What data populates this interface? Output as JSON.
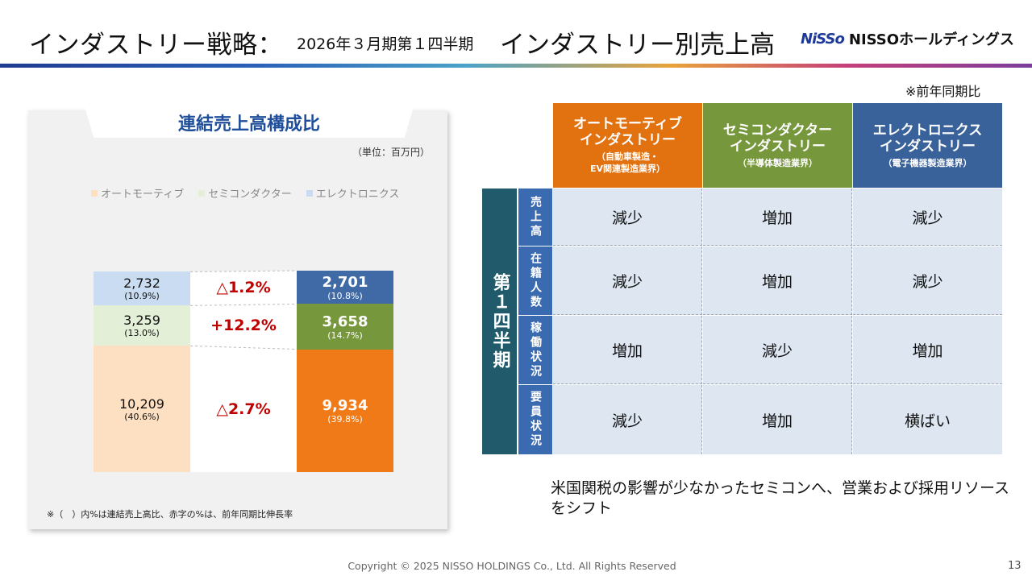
{
  "header": {
    "title_main": "インダストリー戦略：",
    "title_sub": "2026年３月期第１四半期",
    "title_main2": "インダストリー別売上高",
    "logo_mark": "NiSSo",
    "logo_text": "NISSOホールディングス"
  },
  "left_panel": {
    "title": "連結売上高構成比",
    "unit": "（単位：百万円）",
    "legend": [
      "オートモーティブ",
      "セミコンダクター",
      "エレクトロニクス"
    ],
    "note": "※（　）内%は連結売上高比、赤字の%は、前年同期比伸長率"
  },
  "chart_data": {
    "type": "bar",
    "stacked": true,
    "series": [
      {
        "name": "オートモーティブ",
        "values": [
          10209,
          9934
        ],
        "share_labels": [
          "(40.6%)",
          "(39.8%)"
        ],
        "value_labels": [
          "10,209",
          "9,934"
        ]
      },
      {
        "name": "セミコンダクター",
        "values": [
          3259,
          3658
        ],
        "share_labels": [
          "(13.0%)",
          "(14.7%)"
        ],
        "value_labels": [
          "3,259",
          "3,658"
        ]
      },
      {
        "name": "エレクトロニクス",
        "values": [
          2732,
          2701
        ],
        "share_labels": [
          "(10.9%)",
          "(10.8%)"
        ],
        "value_labels": [
          "2,732",
          "2,701"
        ]
      }
    ],
    "changes": [
      "△2.7%",
      "+12.2%",
      "△1.2%"
    ],
    "colors": {
      "auto_light": "#fde0c2",
      "semi_light": "#e3efd6",
      "elec_light": "#c9dcf2",
      "auto_dark": "#f07a17",
      "semi_dark": "#77973d",
      "elec_dark": "#3f6aa6",
      "change": "#c00000"
    }
  },
  "table": {
    "note": "※前年同期比",
    "columns": [
      {
        "title": "オートモーティブ\nインダストリー",
        "sub": "（自動車製造・\nEV関連製造業界）",
        "color": "#e2710f"
      },
      {
        "title": "セミコンダクター\nインダストリー",
        "sub": "（半導体製造業界）",
        "color": "#77973d"
      },
      {
        "title": "エレクトロニクス\nインダストリー",
        "sub": "（電子機器製造業界）",
        "color": "#3a629a"
      }
    ],
    "group_label": "第１四半期",
    "rows": [
      {
        "label": "売上高",
        "values": [
          "減少",
          "増加",
          "減少"
        ]
      },
      {
        "label": "在籍人数",
        "values": [
          "減少",
          "増加",
          "減少"
        ]
      },
      {
        "label": "稼働状況",
        "values": [
          "増加",
          "減少",
          "増加"
        ]
      },
      {
        "label": "要員状況",
        "values": [
          "減少",
          "増加",
          "横ばい"
        ]
      }
    ]
  },
  "summary": "米国関税の影響が少なかったセミコンへ、営業および採用リソースをシフト",
  "footer": {
    "copyright": "Copyright © 2025 NISSO HOLDINGS Co., Ltd. All Rights Reserved",
    "page": "13"
  }
}
